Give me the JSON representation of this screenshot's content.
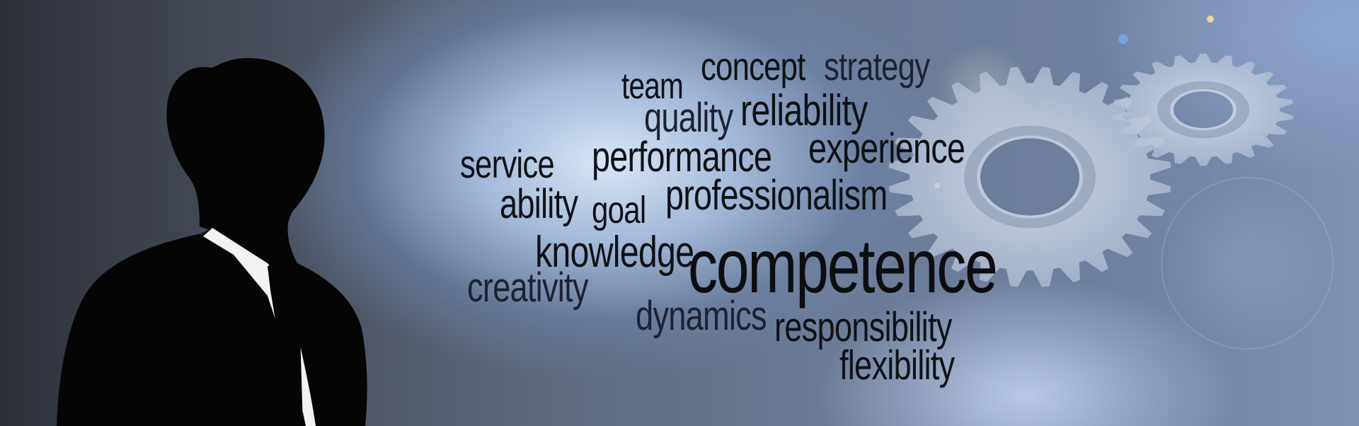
{
  "image": {
    "description_words": [
      "team",
      "concept",
      "strategy",
      "quality",
      "reliability",
      "service",
      "performance",
      "experience",
      "ability",
      "goal",
      "professionalism",
      "knowledge",
      "competence",
      "creativity",
      "dynamics",
      "responsibility",
      "flexibility"
    ]
  },
  "colors": {
    "word_dark": "#0f1116",
    "word_mid": "#1c2230",
    "gear_fill": "#c9d3e2"
  }
}
